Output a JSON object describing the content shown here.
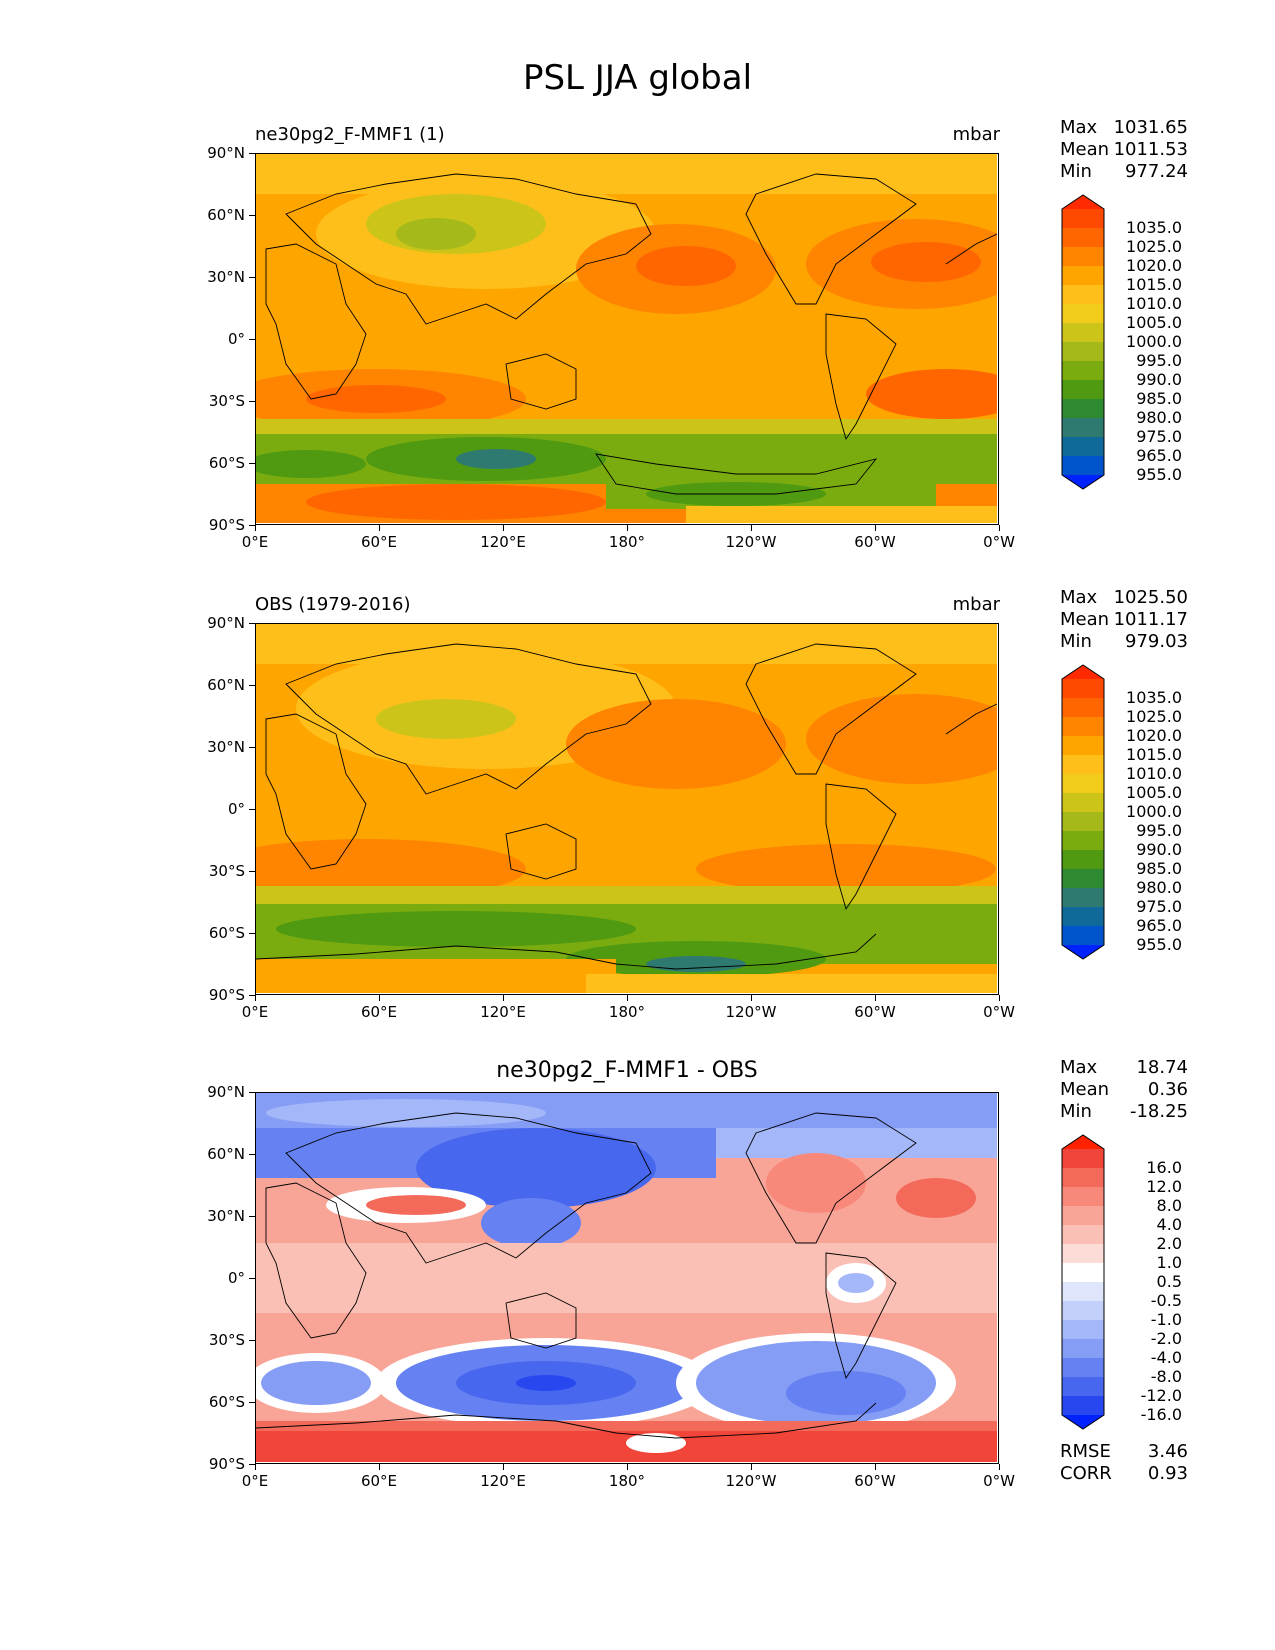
{
  "title": "PSL JJA global",
  "x_ticks": [
    "0°E",
    "60°E",
    "120°E",
    "180°",
    "120°W",
    "60°W",
    "0°W"
  ],
  "y_ticks": [
    "90°N",
    "60°N",
    "30°N",
    "0°",
    "30°S",
    "60°S",
    "90°S"
  ],
  "panels": [
    {
      "title_left": "ne30pg2_F-MMF1 (1)",
      "units": "mbar",
      "stats": [
        {
          "k": "Max",
          "v": "1031.65"
        },
        {
          "k": "Mean",
          "v": "1011.53"
        },
        {
          "k": "Min",
          "v": "977.24"
        }
      ]
    },
    {
      "title_left": "OBS (1979-2016)",
      "units": "mbar",
      "stats": [
        {
          "k": "Max",
          "v": "1025.50"
        },
        {
          "k": "Mean",
          "v": "1011.17"
        },
        {
          "k": "Min",
          "v": "979.03"
        }
      ]
    },
    {
      "title_center": "ne30pg2_F-MMF1 - OBS",
      "stats": [
        {
          "k": "Max",
          "v": "18.74"
        },
        {
          "k": "Mean",
          "v": "0.36"
        },
        {
          "k": "Min",
          "v": "-18.25"
        }
      ],
      "extra_stats": [
        {
          "k": "RMSE",
          "v": "3.46"
        },
        {
          "k": "CORR",
          "v": "0.93"
        }
      ]
    }
  ],
  "colorbar_abs": {
    "labels": [
      "1035.0",
      "1025.0",
      "1020.0",
      "1015.0",
      "1010.0",
      "1005.0",
      "1000.0",
      "995.0",
      "990.0",
      "985.0",
      "980.0",
      "975.0",
      "965.0",
      "955.0"
    ],
    "colors": [
      "#ff2a00",
      "#ff4800",
      "#ff6600",
      "#ff8400",
      "#ffa500",
      "#ffbf1a",
      "#f2cc1a",
      "#cdc41a",
      "#a6b91a",
      "#7aac10",
      "#4f9a10",
      "#2e8a30",
      "#2f7a70",
      "#0f6a9a",
      "#0055cc",
      "#0022ff"
    ]
  },
  "colorbar_diff": {
    "labels": [
      "16.0",
      "12.0",
      "8.0",
      "4.0",
      "2.0",
      "1.0",
      "0.5",
      "-0.5",
      "-1.0",
      "-2.0",
      "-4.0",
      "-8.0",
      "-12.0",
      "-16.0"
    ],
    "colors": [
      "#ff2200",
      "#f2453a",
      "#f46a5a",
      "#f7887a",
      "#f8a598",
      "#fac0b5",
      "#fcdcd6",
      "#ffffff",
      "#dfe6fc",
      "#c3d0fb",
      "#a4b7f8",
      "#859df5",
      "#6682f2",
      "#4767ef",
      "#2847ef",
      "#0022ff"
    ]
  },
  "chart_data": [
    {
      "type": "heatmap",
      "title": "ne30pg2_F-MMF1 (1)",
      "units": "mbar",
      "x_ticks": [
        "0°E",
        "60°E",
        "120°E",
        "180°",
        "120°W",
        "60°W",
        "0°W"
      ],
      "y_ticks": [
        "90°N",
        "60°N",
        "30°N",
        "0°",
        "30°S",
        "60°S",
        "90°S"
      ],
      "levels": [
        955.0,
        965.0,
        975.0,
        980.0,
        985.0,
        990.0,
        995.0,
        1000.0,
        1005.0,
        1010.0,
        1015.0,
        1020.0,
        1025.0,
        1035.0
      ],
      "stats": {
        "max": 1031.65,
        "mean": 1011.53,
        "min": 977.24
      }
    },
    {
      "type": "heatmap",
      "title": "OBS (1979-2016)",
      "units": "mbar",
      "x_ticks": [
        "0°E",
        "60°E",
        "120°E",
        "180°",
        "120°W",
        "60°W",
        "0°W"
      ],
      "y_ticks": [
        "90°N",
        "60°N",
        "30°N",
        "0°",
        "30°S",
        "60°S",
        "90°S"
      ],
      "levels": [
        955.0,
        965.0,
        975.0,
        980.0,
        985.0,
        990.0,
        995.0,
        1000.0,
        1005.0,
        1010.0,
        1015.0,
        1020.0,
        1025.0,
        1035.0
      ],
      "stats": {
        "max": 1025.5,
        "mean": 1011.17,
        "min": 979.03
      }
    },
    {
      "type": "heatmap",
      "title": "ne30pg2_F-MMF1 - OBS",
      "x_ticks": [
        "0°E",
        "60°E",
        "120°E",
        "180°",
        "120°W",
        "60°W",
        "0°W"
      ],
      "y_ticks": [
        "90°N",
        "60°N",
        "30°N",
        "0°",
        "30°S",
        "60°S",
        "90°S"
      ],
      "levels": [
        -16.0,
        -12.0,
        -8.0,
        -4.0,
        -2.0,
        -1.0,
        -0.5,
        0.5,
        1.0,
        2.0,
        4.0,
        8.0,
        12.0,
        16.0
      ],
      "stats": {
        "max": 18.74,
        "mean": 0.36,
        "min": -18.25,
        "rmse": 3.46,
        "corr": 0.93
      }
    }
  ]
}
